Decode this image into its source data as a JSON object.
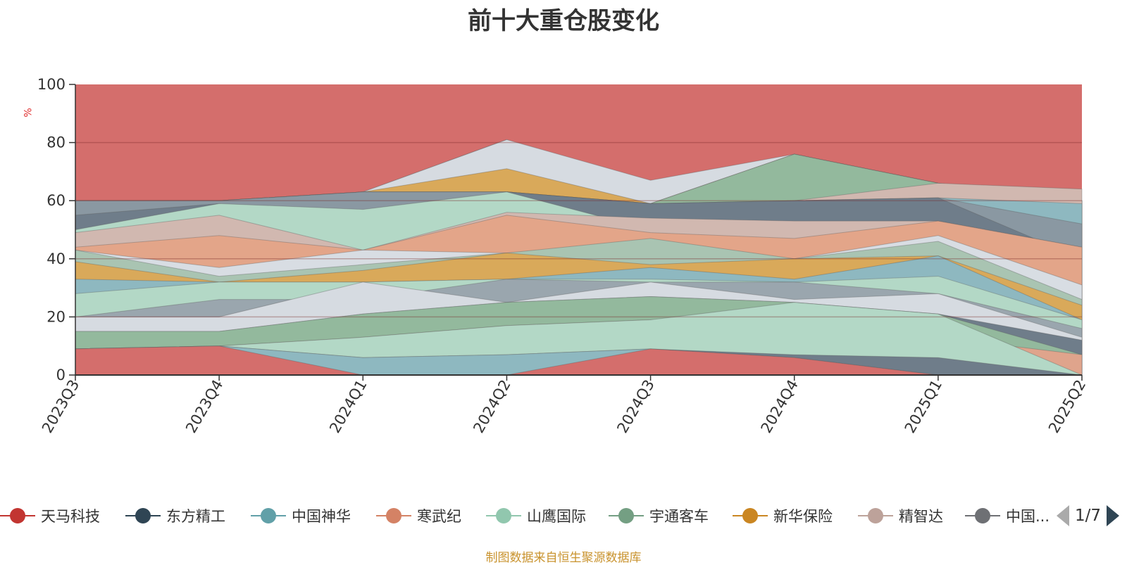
{
  "title": "前十大重仓股变化",
  "unit": "%",
  "source": "制图数据来自恒生聚源数据库",
  "legend": {
    "items": [
      {
        "label": "天马科技",
        "color": "#c23531"
      },
      {
        "label": "东方精工",
        "color": "#2f4554"
      },
      {
        "label": "中国神华",
        "color": "#61a0a8"
      },
      {
        "label": "寒武纪",
        "color": "#d48265"
      },
      {
        "label": "山鹰国际",
        "color": "#91c7ae"
      },
      {
        "label": "宇通客车",
        "color": "#749f83"
      },
      {
        "label": "新华保险",
        "color": "#ca8622"
      },
      {
        "label": "精智达",
        "color": "#bda29a"
      },
      {
        "label": "中国...",
        "color": "#6e7074"
      }
    ],
    "page": "1/7"
  },
  "chart_data": {
    "type": "area",
    "title": "前十大重仓股变化",
    "ylabel": "%",
    "ylim": [
      0,
      100
    ],
    "yticks": [
      "0",
      "20",
      "40",
      "60",
      "80",
      "100"
    ],
    "categories": [
      "2023Q3",
      "2023Q4",
      "2024Q1",
      "2024Q2",
      "2024Q3",
      "2024Q4",
      "2025Q1",
      "2025Q2"
    ],
    "grid": true,
    "background_area": {
      "color": "#d46e6c",
      "value": 100
    },
    "layers": [
      {
        "color": "#8f9aa3",
        "values": [
          60,
          60,
          63,
          81,
          59,
          76,
          66,
          60
        ]
      },
      {
        "color": "#d6dbe1",
        "values": [
          60,
          60,
          63,
          81,
          67,
          76,
          66,
          60
        ]
      },
      {
        "color": "#d9a95a",
        "values": [
          60,
          60,
          63,
          71,
          59,
          76,
          66,
          60
        ]
      },
      {
        "color": "#dfa48c",
        "values": [
          60,
          60,
          63,
          63,
          59,
          76,
          66,
          60
        ]
      },
      {
        "color": "#93b99d",
        "values": [
          60,
          60,
          63,
          63,
          59,
          76,
          66,
          60
        ]
      },
      {
        "color": "#d1b8b0",
        "values": [
          60,
          60,
          63,
          63,
          59,
          60,
          66,
          64
        ]
      },
      {
        "color": "#8eb8c0",
        "values": [
          60,
          60,
          63,
          63,
          59,
          60,
          61,
          59
        ]
      },
      {
        "color": "#8a98a2",
        "values": [
          60,
          60,
          63,
          63,
          59,
          60,
          61,
          52
        ]
      },
      {
        "color": "#6f7d8a",
        "values": [
          55,
          59,
          48,
          63,
          59,
          60,
          61,
          40
        ]
      },
      {
        "color": "#b3d8c6",
        "values": [
          50,
          59,
          57,
          63,
          50,
          47,
          53,
          35
        ]
      },
      {
        "color": "#d1b8b0",
        "values": [
          49,
          55,
          43,
          56,
          54,
          53,
          53,
          44
        ]
      },
      {
        "color": "#e3a589",
        "values": [
          44,
          48,
          43,
          55,
          49,
          47,
          53,
          44
        ]
      },
      {
        "color": "#d8dde3",
        "values": [
          43,
          37,
          43,
          42,
          43,
          40,
          48,
          31
        ]
      },
      {
        "color": "#a9c4b2",
        "values": [
          43,
          34,
          38,
          42,
          47,
          40,
          46,
          26
        ]
      },
      {
        "color": "#d9a95a",
        "values": [
          39,
          32,
          36,
          42,
          38,
          40,
          41,
          24
        ]
      },
      {
        "color": "#8eb8c0",
        "values": [
          33,
          32,
          32,
          33,
          37,
          33,
          41,
          19
        ]
      },
      {
        "color": "#b3d8c6",
        "values": [
          28,
          32,
          32,
          33,
          33,
          32,
          34,
          19
        ]
      },
      {
        "color": "#9aa6ae",
        "values": [
          20,
          26,
          26,
          33,
          32,
          32,
          28,
          16
        ]
      },
      {
        "color": "#d6dbe1",
        "values": [
          20,
          20,
          32,
          25,
          32,
          26,
          28,
          13
        ]
      },
      {
        "color": "#6f7d8a",
        "values": [
          15,
          15,
          21,
          25,
          27,
          25,
          21,
          12
        ]
      },
      {
        "color": "#93b99d",
        "values": [
          15,
          15,
          21,
          25,
          27,
          25,
          21,
          7
        ]
      },
      {
        "color": "#dfa48c",
        "values": [
          9,
          10,
          13,
          17,
          19,
          17,
          13,
          7
        ]
      },
      {
        "color": "#b3d8c6",
        "values": [
          9,
          10,
          13,
          17,
          19,
          25,
          21,
          0
        ]
      },
      {
        "color": "#6f7d8a",
        "values": [
          9,
          10,
          6,
          7,
          9,
          7,
          6,
          0
        ]
      },
      {
        "color": "#8eb8c0",
        "values": [
          9,
          10,
          6,
          7,
          9,
          6,
          0,
          0
        ]
      },
      {
        "color": "#d46e6c",
        "values": [
          9,
          10,
          0,
          0,
          9,
          6,
          0,
          0
        ]
      }
    ]
  }
}
